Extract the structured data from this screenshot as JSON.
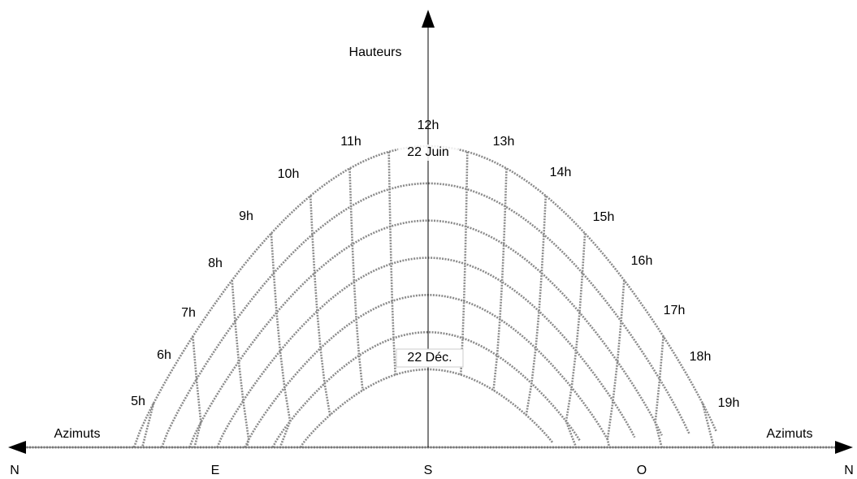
{
  "axes": {
    "vertical": "Hauteurs",
    "horizontal_left": "Azimuts",
    "horizontal_right": "Azimuts"
  },
  "directions": [
    "N",
    "E",
    "S",
    "O",
    "N"
  ],
  "hours": [
    "5h",
    "6h",
    "7h",
    "8h",
    "9h",
    "10h",
    "11h",
    "12h",
    "13h",
    "14h",
    "15h",
    "16h",
    "17h",
    "18h",
    "19h"
  ],
  "curves": {
    "top": "22 Juin",
    "bottom": "22 Déc."
  }
}
